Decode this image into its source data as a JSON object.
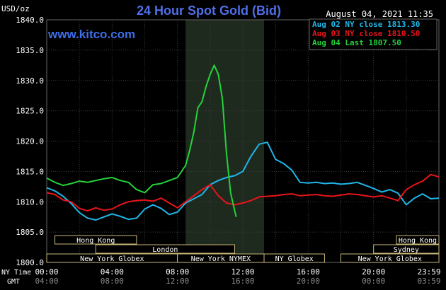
{
  "chart_data": {
    "type": "line",
    "title": "24 Hour Spot Gold (Bid)",
    "ylabel": "USD/oz",
    "watermark": "www.kitco.com",
    "timestamp": "August 04, 2021 11:35",
    "ylim": [
      1800,
      1840
    ],
    "y_ticks": [
      "1840.0",
      "1835.0",
      "1830.0",
      "1825.0",
      "1820.0",
      "1815.0",
      "1810.0",
      "1805.0",
      "1800.0"
    ],
    "xlim_hours": [
      0,
      24
    ],
    "x_ticks_ny": [
      "00:00",
      "04:00",
      "08:00",
      "12:00",
      "16:00",
      "20:00",
      "23:59"
    ],
    "x_ticks_gmt": [
      "04:00",
      "08:00",
      "12:00",
      "16:00",
      "20:00",
      "00:00",
      "03:59"
    ],
    "x_axis_labels": {
      "ny": "NY Time",
      "gmt": "GMT"
    },
    "highlight_hours": [
      8.5,
      13.3
    ],
    "grid": true,
    "legend": [
      {
        "label": "Aug 02 NY close 1813.30",
        "color": "#1fb6e8"
      },
      {
        "label": "Aug 03 NY close 1810.50",
        "color": "#e8141a"
      },
      {
        "label": "Aug 04 Last 1807.50",
        "color": "#22d33a"
      }
    ],
    "series": [
      {
        "name": "Aug 02",
        "color": "#1fb6e8",
        "x": [
          0,
          0.5,
          1,
          1.5,
          2,
          2.5,
          3,
          3.5,
          4,
          4.5,
          5,
          5.5,
          6,
          6.5,
          7,
          7.5,
          8,
          8.5,
          9,
          9.5,
          10,
          10.5,
          11,
          11.5,
          12,
          12.5,
          13,
          13.5,
          14,
          14.5,
          15,
          15.5,
          16,
          16.5,
          17,
          17.5,
          18,
          18.5,
          19,
          19.5,
          20,
          20.5,
          21,
          21.5,
          22,
          22.5,
          23,
          23.5,
          24
        ],
        "y": [
          1812.3,
          1811.8,
          1810.9,
          1809.7,
          1808.2,
          1807.3,
          1807.0,
          1807.5,
          1808.0,
          1807.6,
          1807.1,
          1807.3,
          1808.8,
          1809.5,
          1808.9,
          1807.9,
          1808.3,
          1809.8,
          1810.5,
          1811.2,
          1812.8,
          1813.5,
          1814.0,
          1814.3,
          1815.0,
          1817.5,
          1819.5,
          1819.8,
          1817.0,
          1816.3,
          1815.2,
          1813.2,
          1813.1,
          1813.2,
          1813.0,
          1813.1,
          1812.9,
          1813.0,
          1813.2,
          1812.7,
          1812.2,
          1811.6,
          1812.0,
          1811.4,
          1809.5,
          1810.6,
          1811.3,
          1810.5,
          1810.6
        ]
      },
      {
        "name": "Aug 03",
        "color": "#e8141a",
        "x": [
          0,
          0.5,
          1,
          1.5,
          2,
          2.5,
          3,
          3.5,
          4,
          4.5,
          5,
          5.5,
          6,
          6.5,
          7,
          7.5,
          8,
          8.5,
          9,
          9.5,
          10,
          10.5,
          11,
          11.5,
          12,
          12.5,
          13,
          13.5,
          14,
          14.5,
          15,
          15.5,
          16,
          16.5,
          17,
          17.5,
          18,
          18.5,
          19,
          19.5,
          20,
          20.5,
          21,
          21.5,
          22,
          22.5,
          23,
          23.5,
          24
        ],
        "y": [
          1811.5,
          1811.2,
          1810.3,
          1810.0,
          1808.9,
          1808.5,
          1809.0,
          1808.6,
          1808.8,
          1809.5,
          1810.0,
          1810.2,
          1810.3,
          1810.1,
          1810.6,
          1809.8,
          1809.0,
          1810.0,
          1811.0,
          1812.0,
          1812.8,
          1811.0,
          1809.8,
          1809.5,
          1809.8,
          1810.2,
          1810.8,
          1810.9,
          1811.0,
          1811.2,
          1811.3,
          1811.0,
          1811.1,
          1811.2,
          1811.0,
          1810.9,
          1811.1,
          1811.3,
          1811.2,
          1811.0,
          1810.8,
          1811.0,
          1810.6,
          1810.2,
          1812.0,
          1812.8,
          1813.4,
          1814.5,
          1814.1
        ]
      },
      {
        "name": "Aug 04",
        "color": "#22d33a",
        "x": [
          0,
          0.5,
          1,
          1.5,
          2,
          2.5,
          3,
          3.5,
          4,
          4.5,
          5,
          5.5,
          6,
          6.5,
          7,
          7.5,
          8,
          8.5,
          8.75,
          9,
          9.25,
          9.5,
          9.75,
          10,
          10.25,
          10.5,
          10.75,
          11,
          11.25,
          11.5,
          11.6
        ],
        "y": [
          1813.9,
          1813.2,
          1812.7,
          1813.0,
          1813.4,
          1813.2,
          1813.5,
          1813.8,
          1814.0,
          1813.5,
          1813.2,
          1812.0,
          1811.5,
          1812.8,
          1813.0,
          1813.5,
          1814.0,
          1816.0,
          1818.5,
          1821.5,
          1825.5,
          1826.5,
          1829.0,
          1831.0,
          1832.5,
          1831.0,
          1827.0,
          1818.0,
          1811.5,
          1808.5,
          1807.5
        ]
      }
    ],
    "sessions": [
      {
        "name": "Hong Kong",
        "start": 0.5,
        "end": 5.5,
        "row": 0
      },
      {
        "name": "Hong Kong",
        "start": 21.4,
        "end": 24,
        "row": 0
      },
      {
        "name": "London",
        "start": 3.0,
        "end": 11.5,
        "row": 1
      },
      {
        "name": "Sydney",
        "start": 20.0,
        "end": 24,
        "row": 1
      },
      {
        "name": "New York Globex",
        "start": 0,
        "end": 8.0,
        "row": 2
      },
      {
        "name": "New York NYMEX",
        "start": 8.0,
        "end": 13.3,
        "row": 2
      },
      {
        "name": "NY Globex",
        "start": 13.3,
        "end": 17.0,
        "row": 2
      },
      {
        "name": "New York Globex",
        "start": 18.0,
        "end": 24,
        "row": 2
      }
    ]
  }
}
